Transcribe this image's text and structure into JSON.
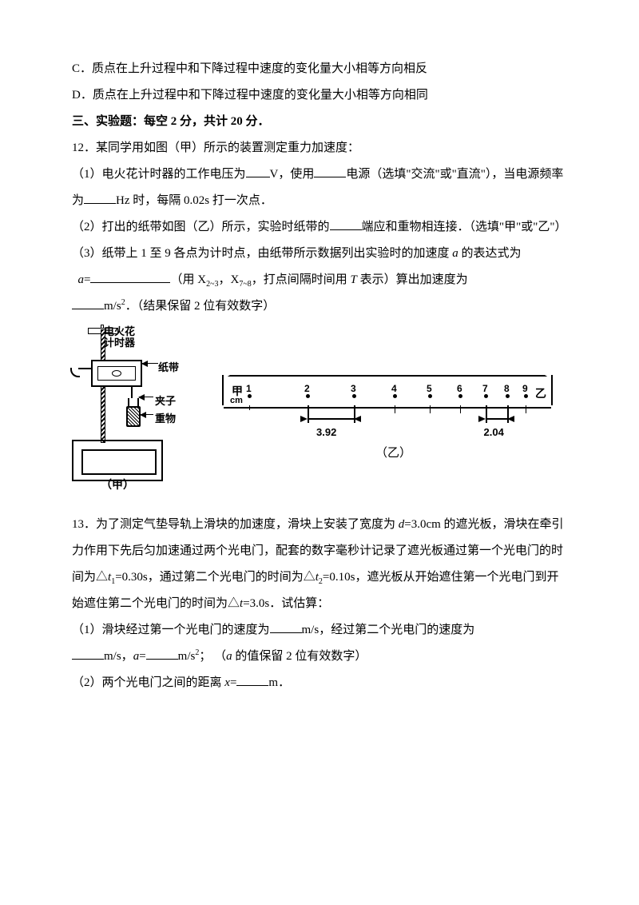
{
  "options": {
    "C": "C．质点在上升过程中和下降过程中速度的变化量大小相等方向相反",
    "D": "D．质点在上升过程中和下降过程中速度的变化量大小相等方向相同"
  },
  "section3_title": "三、实验题：每空 2 分，共计 20 分．",
  "q12": {
    "intro": "12．某同学用如图（甲）所示的装置测定重力加速度：",
    "p1_a": "（1）电火花计时器的工作电压为",
    "p1_b": "V，使用",
    "p1_c": "电源（选填\"交流\"或\"直流\"），当电源频率为",
    "p1_d": "Hz 时，每隔 0.02s 打一次点．",
    "p2_a": "（2）打出的纸带如图（乙）所示，实验时纸带的",
    "p2_b": "端应和重物相连接．（选填\"甲\"或\"乙\"）",
    "p3_a": "（3）纸带上 1 至 9 各点为计时点，由纸带所示数据列出实验时的加速度 ",
    "p3_ital": "a",
    "p3_b": " 的表达式为",
    "p4_a": " a",
    "p4_eq": "=",
    "p4_b": "（用 X",
    "p4_b2": "，X",
    "p4_c": "，打点间隔时间用 ",
    "p4_T": "T",
    "p4_d": " 表示）算出加速度为",
    "p5_a": "m/s",
    "p5_b": "．（结果保留 2 位有效数字）",
    "sub23": "2~3",
    "sub78": "7~8",
    "sup2": "2"
  },
  "fig": {
    "lbl_spark": "电火花\n计时器",
    "lbl_tape": "纸带",
    "lbl_clip": "夹子",
    "lbl_weight": "重物",
    "caption_left": "（甲）",
    "caption_right": "（乙）",
    "jia": "甲",
    "yi": "乙",
    "cm": "cm",
    "dots": {
      "1": 32,
      "2": 105,
      "3": 163,
      "4": 214,
      "5": 258,
      "6": 296,
      "7": 328,
      "8": 355,
      "9": 378
    },
    "dim1": "3.92",
    "dim1_from": 105,
    "dim1_to": 163,
    "dim2": "2.04",
    "dim2_from": 328,
    "dim2_to": 355
  },
  "q13": {
    "p1_a": "13．为了测定气垫导轨上滑块的加速度，滑块上安装了宽度为 ",
    "p1_d": "d",
    "p1_b": "=3.0cm 的遮光板，滑块在牵引力作用下先后匀加速通过两个光电门，配套的数字毫秒计记录了遮光板通过第一个光电门的时间为△",
    "p1_t1": "t",
    "p1_sub1": "1",
    "p1_c": "=0.30s，通过第二个光电门的时间为△",
    "p1_t2": "t",
    "p1_sub2": "2",
    "p1_e": "=0.10s，遮光板从开始遮住第一个光电门到开始遮住第二个光电门的时间为△",
    "p1_t3": "t",
    "p1_f": "=3.0s．试估算：",
    "p2_a": "（1）滑块经过第一个光电门的速度为",
    "p2_b": "m/s，经过第二个光电门的速度为",
    "p3_a": "m/s，",
    "p3_ait": "a",
    "p3_eq": "=",
    "p3_b": "m/s",
    "p3_c": "； （",
    "p3_ait2": "a",
    "p3_d": " 的值保留 2 位有效数字）",
    "p4_a": "（2）两个光电门之间的距离 ",
    "p4_x": "x",
    "p4_eq": "=",
    "p4_b": "m．",
    "sup2": "2"
  }
}
